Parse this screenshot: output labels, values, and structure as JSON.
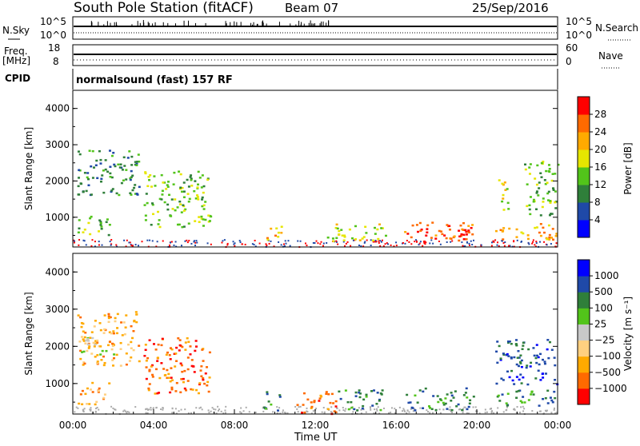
{
  "header": {
    "station": "South Pole Station (fitACF)",
    "beam": "Beam 07",
    "date": "25/Sep/2016"
  },
  "strips": {
    "nsky_label": "N.Sky",
    "nsky_ticks": [
      "10^5",
      "10^0"
    ],
    "nsearch_label": "N.Search",
    "nsearch_ticks": [
      "10^5",
      "10^0"
    ],
    "freq_label_1": "Freq.",
    "freq_label_2": "[MHz]",
    "freq_ticks": [
      "18",
      "8"
    ],
    "nave_label": "Nave",
    "nave_ticks": [
      "60",
      "0"
    ],
    "cpid_label": "CPID",
    "cpid_value": "normalsound (fast) 157 RF"
  },
  "colors": {
    "power_scale": [
      "#0000ff",
      "#1f49a8",
      "#2f7f3a",
      "#52c41a",
      "#e6e600",
      "#ffaa00",
      "#ff6a00",
      "#ff0000"
    ],
    "velocity_scale": [
      "#ff0000",
      "#ff6a00",
      "#ffaa00",
      "#ffd080",
      "#c8c8c8",
      "#52c41a",
      "#2f7f3a",
      "#1f49a8",
      "#0000ff"
    ],
    "ground_scatter": "#aaaaaa"
  },
  "chart_data": [
    {
      "type": "heatmap",
      "name": "power",
      "ylabel": "Slant Range [km]",
      "xlabel": "Time UT",
      "x_ticks": [
        "00:00",
        "04:00",
        "08:00",
        "12:00",
        "16:00",
        "20:00",
        "00:00"
      ],
      "y_ticks": [
        "1000",
        "2000",
        "3000",
        "4000"
      ],
      "xlim_hours": [
        0,
        24
      ],
      "ylim_km": [
        180,
        4500
      ],
      "colorbar_label": "Power [dB]",
      "colorbar_ticks": [
        "4",
        "8",
        "12",
        "16",
        "20",
        "24",
        "28"
      ],
      "colorbar_range": [
        0,
        32
      ],
      "blobs": [
        {
          "t0": 0.2,
          "t1": 3.3,
          "r0": 1600,
          "r1": 2900,
          "level": 2
        },
        {
          "t0": 0.2,
          "t1": 1.8,
          "r0": 480,
          "r1": 1050,
          "level": 3
        },
        {
          "t0": 3.5,
          "t1": 6.8,
          "r0": 750,
          "r1": 2300,
          "level": 3
        },
        {
          "t0": 9.4,
          "t1": 10.3,
          "r0": 400,
          "r1": 850,
          "level": 5
        },
        {
          "t0": 12.5,
          "t1": 15.5,
          "r0": 350,
          "r1": 850,
          "level": 4
        },
        {
          "t0": 16.4,
          "t1": 19.8,
          "r0": 350,
          "r1": 900,
          "level": 6
        },
        {
          "t0": 18.0,
          "t1": 19.6,
          "r0": 380,
          "r1": 700,
          "level": 7
        },
        {
          "t0": 20.9,
          "t1": 24.0,
          "r0": 400,
          "r1": 850,
          "level": 5
        },
        {
          "t0": 21.0,
          "t1": 21.6,
          "r0": 1200,
          "r1": 2100,
          "level": 4
        },
        {
          "t0": 22.3,
          "t1": 24.0,
          "r0": 1000,
          "r1": 2600,
          "level": 3
        }
      ]
    },
    {
      "type": "heatmap",
      "name": "velocity",
      "ylabel": "Slant Range [km]",
      "xlabel": "Time UT",
      "x_ticks": [
        "00:00",
        "04:00",
        "08:00",
        "12:00",
        "16:00",
        "20:00",
        "00:00"
      ],
      "y_ticks": [
        "1000",
        "2000",
        "3000",
        "4000"
      ],
      "xlim_hours": [
        0,
        24
      ],
      "ylim_km": [
        180,
        4500
      ],
      "colorbar_label": "Velocity [m s⁻¹]",
      "colorbar_ticks": [
        "1000",
        "500",
        "100",
        "25",
        "−25",
        "−100",
        "−500",
        "−1000"
      ],
      "blobs": [
        {
          "t0": 0.2,
          "t1": 3.3,
          "r0": 1500,
          "r1": 2950,
          "level": 2
        },
        {
          "t0": 0.2,
          "t1": 2.0,
          "r0": 1800,
          "r1": 2300,
          "level": 4
        },
        {
          "t0": 0.2,
          "t1": 1.8,
          "r0": 450,
          "r1": 1050,
          "level": 2
        },
        {
          "t0": 3.5,
          "t1": 6.8,
          "r0": 750,
          "r1": 2300,
          "level": 1
        },
        {
          "t0": 9.4,
          "t1": 10.3,
          "r0": 300,
          "r1": 850,
          "level": 6
        },
        {
          "t0": 11.0,
          "t1": 13.0,
          "r0": 200,
          "r1": 800,
          "level": 1
        },
        {
          "t0": 13.0,
          "t1": 15.5,
          "r0": 300,
          "r1": 850,
          "level": 6
        },
        {
          "t0": 16.4,
          "t1": 19.8,
          "r0": 300,
          "r1": 900,
          "level": 6
        },
        {
          "t0": 20.9,
          "t1": 24.0,
          "r0": 400,
          "r1": 850,
          "level": 6
        },
        {
          "t0": 20.9,
          "t1": 24.0,
          "r0": 1000,
          "r1": 2200,
          "level": 7
        }
      ]
    }
  ]
}
